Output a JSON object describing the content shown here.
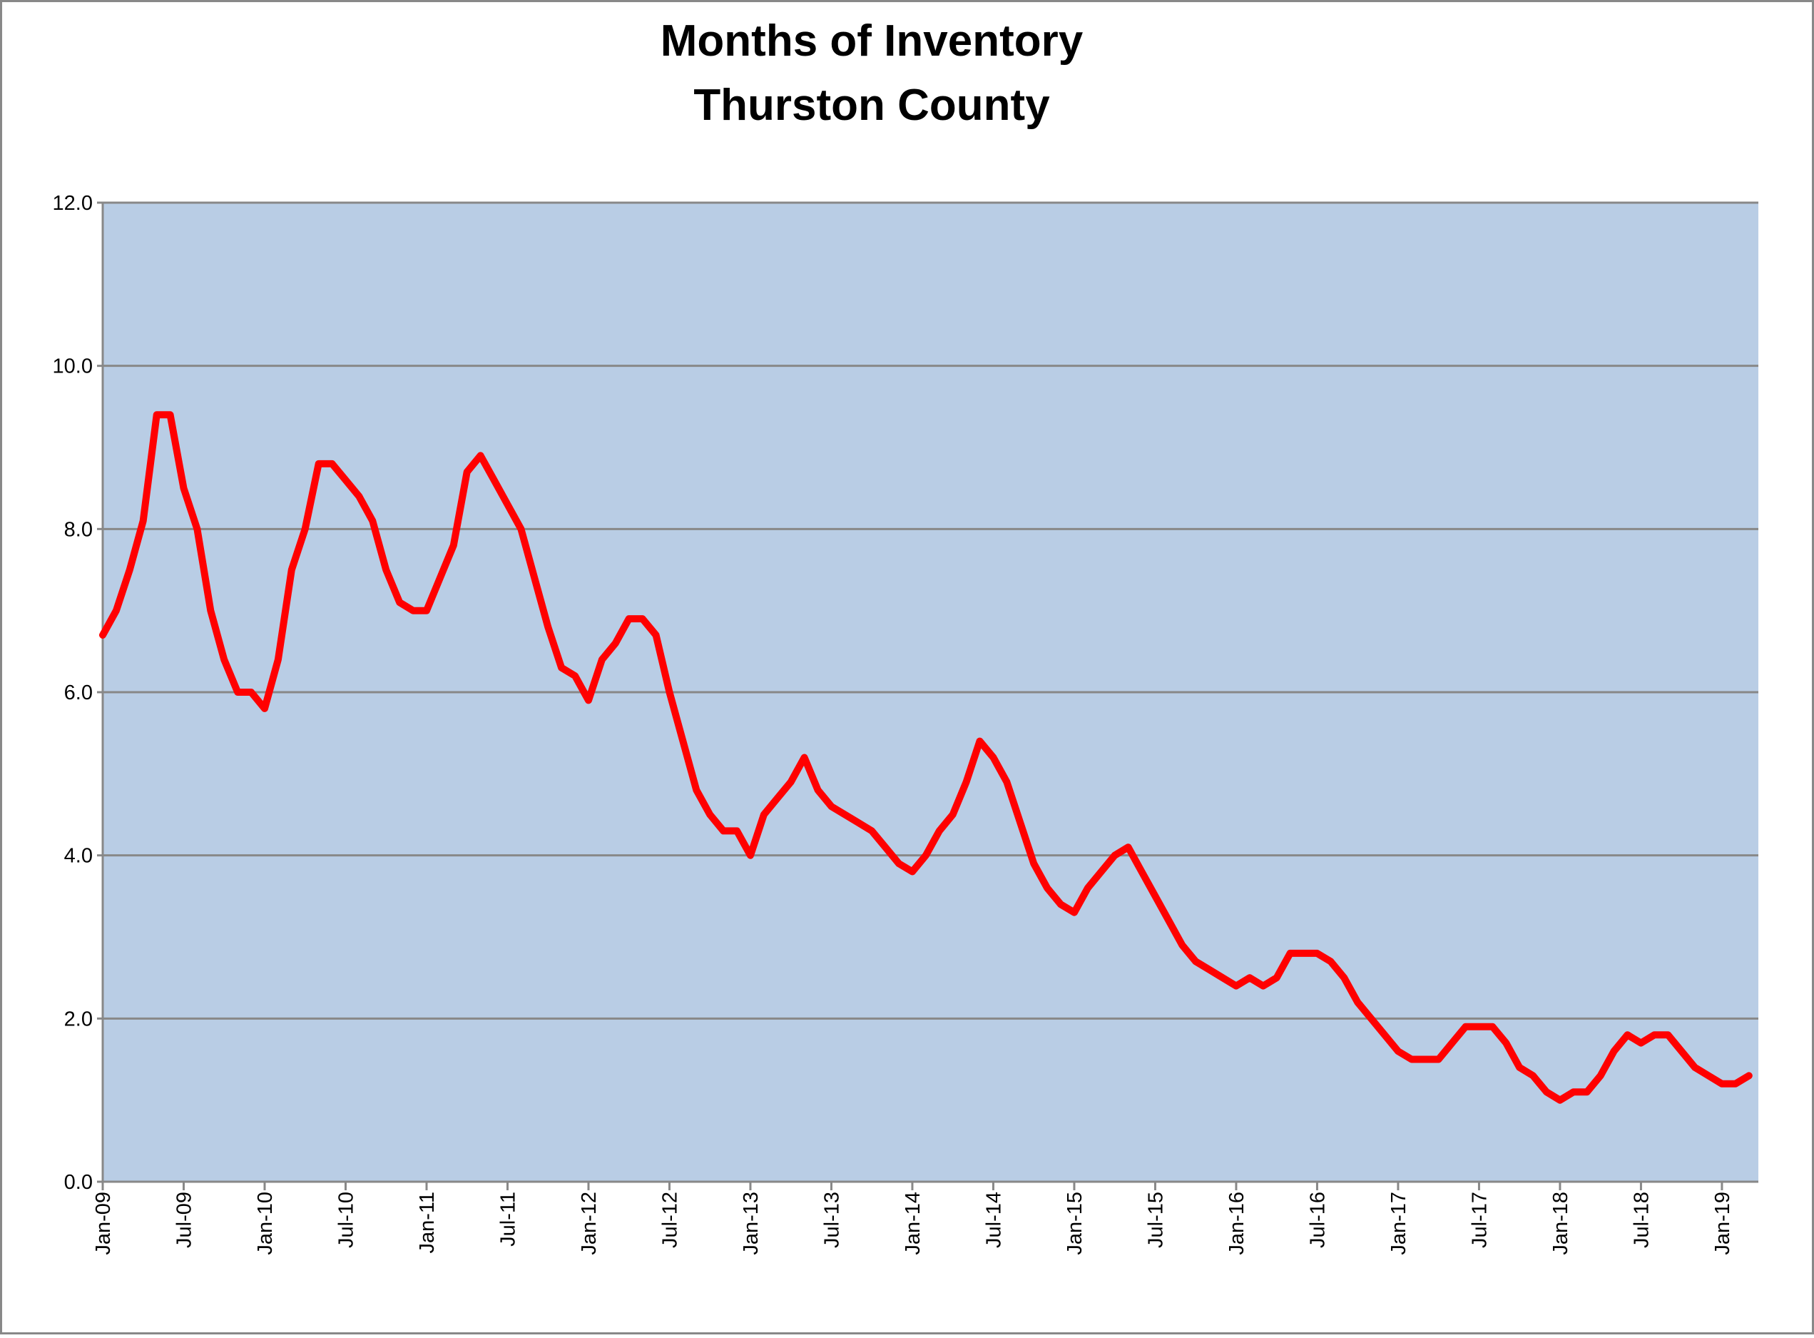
{
  "chart_data": {
    "type": "line",
    "title": "Months of Inventory",
    "subtitle": "Thurston County",
    "categories": [
      "Jan-09",
      null,
      null,
      null,
      null,
      null,
      "Jul-09",
      null,
      null,
      null,
      null,
      null,
      "Jan-10",
      null,
      null,
      null,
      null,
      null,
      "Jul-10",
      null,
      null,
      null,
      null,
      null,
      "Jan-11",
      null,
      null,
      null,
      null,
      null,
      "Jul-11",
      null,
      null,
      null,
      null,
      null,
      "Jan-12",
      null,
      null,
      null,
      null,
      null,
      "Jul-12",
      null,
      null,
      null,
      null,
      null,
      "Jan-13",
      null,
      null,
      null,
      null,
      null,
      "Jul-13",
      null,
      null,
      null,
      null,
      null,
      "Jan-14",
      null,
      null,
      null,
      null,
      null,
      "Jul-14",
      null,
      null,
      null,
      null,
      null,
      "Jan-15",
      null,
      null,
      null,
      null,
      null,
      "Jul-15",
      null,
      null,
      null,
      null,
      null,
      "Jan-16",
      null,
      null,
      null,
      null,
      null,
      "Jul-16",
      null,
      null,
      null,
      null,
      null,
      "Jan-17",
      null,
      null,
      null,
      null,
      null,
      "Jul-17",
      null,
      null,
      null,
      null,
      null,
      "Jan-18",
      null,
      null,
      null,
      null,
      null,
      "Jul-18",
      null,
      null,
      null,
      null,
      null,
      "Jan-19",
      null,
      null
    ],
    "series": [
      {
        "name": "Months of Inventory",
        "color": "#ff0000",
        "values": [
          6.7,
          7.0,
          7.5,
          8.1,
          9.4,
          9.4,
          8.5,
          8.0,
          7.0,
          6.4,
          6.0,
          6.0,
          5.8,
          6.4,
          7.5,
          8.0,
          8.8,
          8.8,
          8.6,
          8.4,
          8.1,
          7.5,
          7.1,
          7.0,
          7.0,
          7.4,
          7.8,
          8.7,
          8.9,
          8.6,
          8.3,
          8.0,
          7.4,
          6.8,
          6.3,
          6.2,
          5.9,
          6.4,
          6.6,
          6.9,
          6.9,
          6.7,
          6.0,
          5.4,
          4.8,
          4.5,
          4.3,
          4.3,
          4.0,
          4.5,
          4.7,
          4.9,
          5.2,
          4.8,
          4.6,
          4.5,
          4.4,
          4.3,
          4.1,
          3.9,
          3.8,
          4.0,
          4.3,
          4.5,
          4.9,
          5.4,
          5.2,
          4.9,
          4.4,
          3.9,
          3.6,
          3.4,
          3.3,
          3.6,
          3.8,
          4.0,
          4.1,
          3.8,
          3.5,
          3.2,
          2.9,
          2.7,
          2.6,
          2.5,
          2.4,
          2.5,
          2.4,
          2.5,
          2.8,
          2.8,
          2.8,
          2.7,
          2.5,
          2.2,
          2.0,
          1.8,
          1.6,
          1.5,
          1.5,
          1.5,
          1.7,
          1.9,
          1.9,
          1.9,
          1.7,
          1.4,
          1.3,
          1.1,
          1.0,
          1.1,
          1.1,
          1.3,
          1.6,
          1.8,
          1.7,
          1.8,
          1.8,
          1.6,
          1.4,
          1.3,
          1.2,
          1.2,
          1.3
        ]
      }
    ],
    "ylim": [
      0,
      12
    ],
    "yticks": [
      {
        "value": 0,
        "label": "0.0"
      },
      {
        "value": 2,
        "label": "2.0"
      },
      {
        "value": 4,
        "label": "4.0"
      },
      {
        "value": 6,
        "label": "6.0"
      },
      {
        "value": 8,
        "label": "8.0"
      },
      {
        "value": 10,
        "label": "10.0"
      },
      {
        "value": 12,
        "label": "12.0"
      }
    ],
    "grid": true
  }
}
